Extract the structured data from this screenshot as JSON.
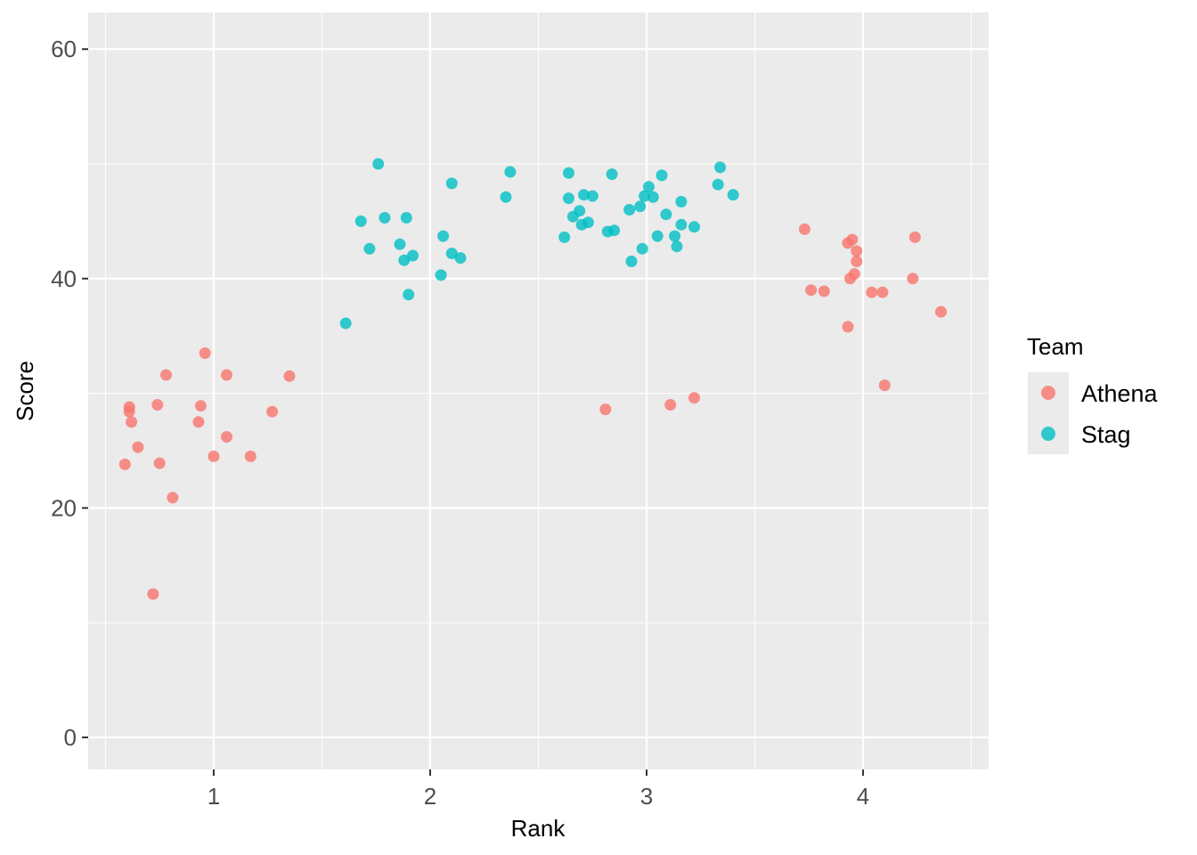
{
  "chart_data": {
    "type": "scatter",
    "xlabel": "Rank",
    "ylabel": "Score",
    "xlim": [
      0.42,
      4.58
    ],
    "ylim": [
      -2.8,
      63.2
    ],
    "x_ticks": [
      1,
      2,
      3,
      4
    ],
    "y_ticks": [
      0,
      20,
      40,
      60
    ],
    "x_tick_labels": [
      "1",
      "2",
      "3",
      "4"
    ],
    "y_tick_labels": [
      "0",
      "20",
      "40",
      "60"
    ],
    "grid": true,
    "legend": {
      "title": "Team",
      "position": "right"
    },
    "series": [
      {
        "name": "Athena",
        "color": "#F8766D",
        "points": [
          [
            0.59,
            23.8
          ],
          [
            0.61,
            28.4
          ],
          [
            0.61,
            28.8
          ],
          [
            0.62,
            27.5
          ],
          [
            0.65,
            25.3
          ],
          [
            0.72,
            12.5
          ],
          [
            0.74,
            29.0
          ],
          [
            0.75,
            23.9
          ],
          [
            0.78,
            31.6
          ],
          [
            0.81,
            20.9
          ],
          [
            0.93,
            27.5
          ],
          [
            0.94,
            28.9
          ],
          [
            0.96,
            33.5
          ],
          [
            1.0,
            24.5
          ],
          [
            1.06,
            26.2
          ],
          [
            1.06,
            31.6
          ],
          [
            1.17,
            24.5
          ],
          [
            1.27,
            28.4
          ],
          [
            1.35,
            31.5
          ],
          [
            2.81,
            28.6
          ],
          [
            3.11,
            29.0
          ],
          [
            3.22,
            29.6
          ],
          [
            3.73,
            44.3
          ],
          [
            3.76,
            39.0
          ],
          [
            3.82,
            38.9
          ],
          [
            3.93,
            43.1
          ],
          [
            3.93,
            35.8
          ],
          [
            3.94,
            40.0
          ],
          [
            3.95,
            43.4
          ],
          [
            3.96,
            40.4
          ],
          [
            3.97,
            41.5
          ],
          [
            3.97,
            42.4
          ],
          [
            4.04,
            38.8
          ],
          [
            4.09,
            38.8
          ],
          [
            4.1,
            30.7
          ],
          [
            4.23,
            40.0
          ],
          [
            4.24,
            43.6
          ],
          [
            4.36,
            37.1
          ]
        ]
      },
      {
        "name": "Stag",
        "color": "#00BFC4",
        "points": [
          [
            1.61,
            36.1
          ],
          [
            1.68,
            45.0
          ],
          [
            1.72,
            42.6
          ],
          [
            1.76,
            50.0
          ],
          [
            1.79,
            45.3
          ],
          [
            1.86,
            43.0
          ],
          [
            1.88,
            41.6
          ],
          [
            1.89,
            45.3
          ],
          [
            1.9,
            38.6
          ],
          [
            1.92,
            42.0
          ],
          [
            2.05,
            40.3
          ],
          [
            2.06,
            43.7
          ],
          [
            2.1,
            48.3
          ],
          [
            2.1,
            42.2
          ],
          [
            2.14,
            41.8
          ],
          [
            2.35,
            47.1
          ],
          [
            2.37,
            49.3
          ],
          [
            2.62,
            43.6
          ],
          [
            2.64,
            49.2
          ],
          [
            2.64,
            47.0
          ],
          [
            2.66,
            45.4
          ],
          [
            2.69,
            45.9
          ],
          [
            2.7,
            44.7
          ],
          [
            2.71,
            47.3
          ],
          [
            2.73,
            44.9
          ],
          [
            2.75,
            47.2
          ],
          [
            2.82,
            44.1
          ],
          [
            2.84,
            49.1
          ],
          [
            2.85,
            44.2
          ],
          [
            2.92,
            46.0
          ],
          [
            2.93,
            41.5
          ],
          [
            2.97,
            46.3
          ],
          [
            2.98,
            42.6
          ],
          [
            2.99,
            47.2
          ],
          [
            3.01,
            48.0
          ],
          [
            3.03,
            47.1
          ],
          [
            3.05,
            43.7
          ],
          [
            3.07,
            49.0
          ],
          [
            3.09,
            45.6
          ],
          [
            3.13,
            43.7
          ],
          [
            3.14,
            42.8
          ],
          [
            3.16,
            44.7
          ],
          [
            3.16,
            46.7
          ],
          [
            3.22,
            44.5
          ],
          [
            3.33,
            48.2
          ],
          [
            3.34,
            49.7
          ],
          [
            3.4,
            47.3
          ]
        ]
      }
    ]
  }
}
